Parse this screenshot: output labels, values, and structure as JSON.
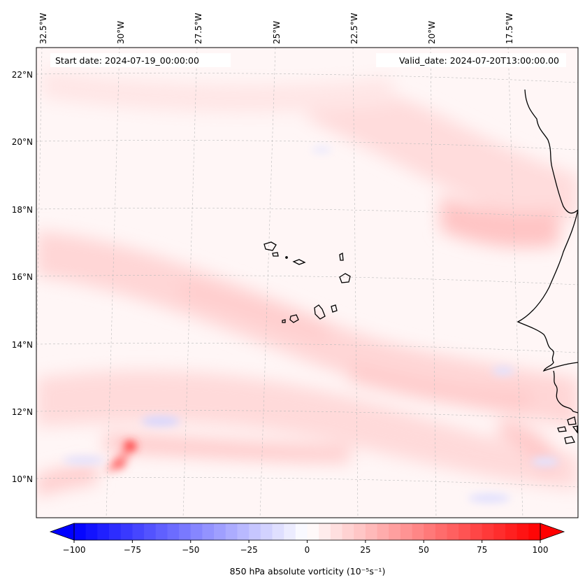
{
  "header": {
    "start_date": "Start date: 2024-07-19_00:00:00",
    "valid_date": "Valid_date: 2024-07-20T13:00:00.00"
  },
  "map": {
    "lon_labels": [
      "32.5°W",
      "30°W",
      "27.5°W",
      "25°W",
      "22.5°W",
      "20°W",
      "17.5°W"
    ],
    "lat_labels": [
      "22°N",
      "20°N",
      "18°N",
      "16°N",
      "14°N",
      "12°N",
      "10°N"
    ],
    "projection": "conic (curved graticule)",
    "gridlines": true,
    "land_outline_color": "#000000",
    "features": [
      "Cape Verde islands",
      "West African coastline"
    ]
  },
  "field": {
    "variable": "850 hPa absolute vorticity",
    "max_color": "#ff0000",
    "min_color": "#0000ff",
    "mid_color": "#ffffff"
  },
  "colorbar": {
    "label": "850 hPa absolute vorticity (10⁻⁵s⁻¹)",
    "ticks": [
      "−100",
      "−75",
      "−50",
      "−25",
      "0",
      "25",
      "50",
      "75",
      "100"
    ],
    "range": [
      -100,
      100
    ],
    "levels": 41,
    "extend": "both",
    "cmap": "bwr"
  }
}
